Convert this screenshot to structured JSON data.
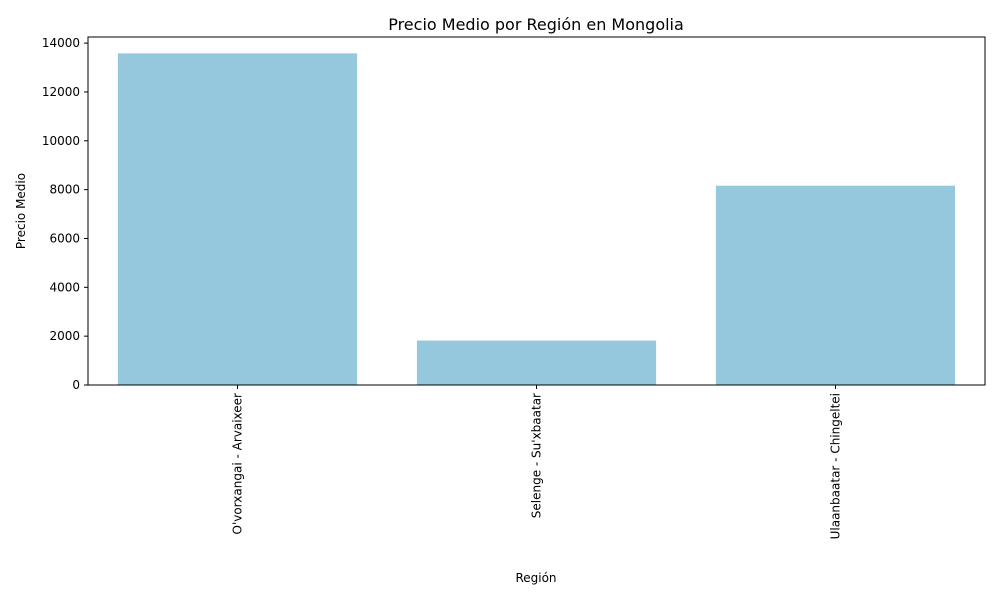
{
  "chart_data": {
    "type": "bar",
    "title": "Precio Medio por Región en Mongolia",
    "xlabel": "Región",
    "ylabel": "Precio Medio",
    "categories": [
      "O'vorxangai - Arvaixeer",
      "Selenge - Su'xbaatar",
      "Ulaanbaatar - Chingeltei"
    ],
    "values": [
      13580,
      1820,
      8160
    ],
    "ylim": [
      0,
      14250
    ],
    "yticks": [
      0,
      2000,
      4000,
      6000,
      8000,
      10000,
      12000,
      14000
    ],
    "ytick_labels": [
      "0",
      "2000",
      "4000",
      "6000",
      "8000",
      "10000",
      "12000",
      "14000"
    ],
    "bar_color": "#95c8dd",
    "grid": false,
    "legend": "none"
  }
}
